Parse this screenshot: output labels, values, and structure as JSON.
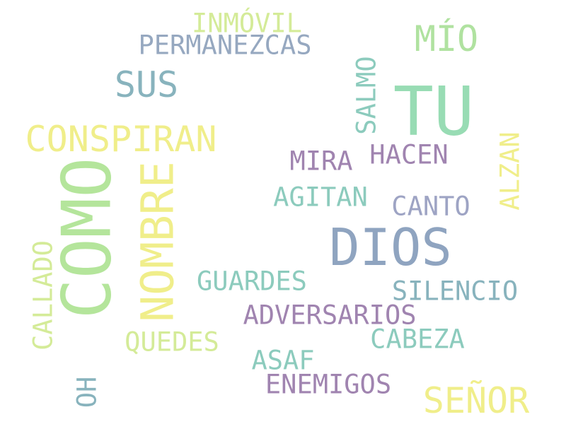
{
  "palette": {
    "yellow": "#f0ee8a",
    "light_green": "#b4e59b",
    "teal": "#8ccbbd",
    "slate": "#8fa4c0",
    "purple": "#a084b0",
    "blue_gray": "#88b3bd",
    "mint": "#98dcb4"
  },
  "words": [
    {
      "text": "INMÓVIL",
      "color": "#d4eb98"
    },
    {
      "text": "PERMANEZCAS",
      "color": "#96a8c0"
    },
    {
      "text": "MÍO",
      "color": "#b0e2a0"
    },
    {
      "text": "SUS",
      "color": "#88b3bd"
    },
    {
      "text": "TU",
      "color": "#98dcb4"
    },
    {
      "text": "SALMO",
      "color": "#8ccbbd"
    },
    {
      "text": "CONSPIRAN",
      "color": "#f0ee8a"
    },
    {
      "text": "MIRA",
      "color": "#a084b0"
    },
    {
      "text": "HACEN",
      "color": "#a084b0"
    },
    {
      "text": "COMO",
      "color": "#b4e59b"
    },
    {
      "text": "NOMBRE",
      "color": "#f0ee8a"
    },
    {
      "text": "ALZAN",
      "color": "#f0ee8a"
    },
    {
      "text": "AGITAN",
      "color": "#8ccbbd"
    },
    {
      "text": "CANTO",
      "color": "#9ea4c4"
    },
    {
      "text": "DIOS",
      "color": "#8fa4c0"
    },
    {
      "text": "CALLADO",
      "color": "#d4eb98"
    },
    {
      "text": "GUARDES",
      "color": "#8ccbbd"
    },
    {
      "text": "SILENCIO",
      "color": "#88b3bd"
    },
    {
      "text": "ADVERSARIOS",
      "color": "#a084b0"
    },
    {
      "text": "QUEDES",
      "color": "#d4eb98"
    },
    {
      "text": "CABEZA",
      "color": "#8ccbbd"
    },
    {
      "text": "ASAF",
      "color": "#8ccbbd"
    },
    {
      "text": "OH",
      "color": "#88b3bd"
    },
    {
      "text": "ENEMIGOS",
      "color": "#a084b0"
    },
    {
      "text": "SEÑOR",
      "color": "#f0ee8a"
    }
  ]
}
